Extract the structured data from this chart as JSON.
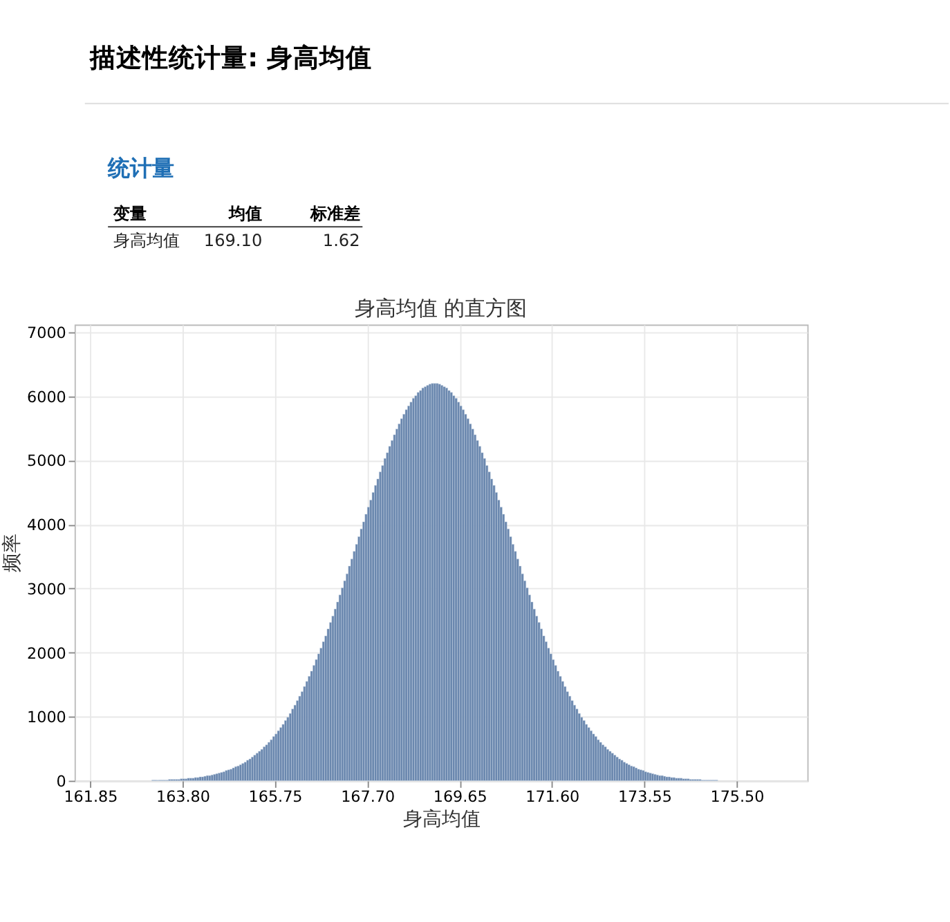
{
  "chart_data": {
    "type": "histogram",
    "title": "身高均值 的直方图",
    "xlabel": "身高均值",
    "ylabel": "频率",
    "annotations": [
      "描述性统计量: 身高均值",
      "统计量",
      "变量",
      "均值",
      "标准差",
      "身高均值",
      "169.10",
      "1.62"
    ],
    "color": "#6a87ae",
    "grid": true,
    "xlim": [
      161.52,
      176.99
    ],
    "ylim": [
      0,
      7120
    ],
    "xticks": [
      161.85,
      {
        "value": 163.8,
        "label": "163.80"
      },
      165.75,
      {
        "value": 167.7,
        "label": "167.70"
      },
      169.65,
      {
        "value": 171.6,
        "label": "171.60"
      },
      173.55,
      {
        "value": 175.5,
        "label": "175.50"
      }
    ],
    "yticks": [
      0,
      1000,
      2000,
      3000,
      4000,
      5000,
      6000,
      7000
    ],
    "bins": [
      163.15,
      163.2,
      163.25,
      163.3,
      163.35,
      163.4,
      163.45,
      163.5,
      163.55,
      163.6,
      163.65,
      163.7,
      163.75,
      163.8,
      163.85,
      163.9,
      163.95,
      164.0,
      164.05,
      164.1,
      164.15,
      164.2,
      164.25,
      164.3,
      164.35,
      164.4,
      164.45,
      164.5,
      164.55,
      164.6,
      164.65,
      164.7,
      164.75,
      164.8,
      164.85,
      164.9,
      164.95,
      165.0,
      165.05,
      165.1,
      165.15,
      165.2,
      165.25,
      165.3,
      165.35,
      165.4,
      165.45,
      165.5,
      165.55,
      165.6,
      165.65,
      165.7,
      165.75,
      165.8,
      165.85,
      165.9,
      165.95,
      166.0,
      166.05,
      166.1,
      166.15,
      166.2,
      166.25,
      166.3,
      166.35,
      166.4,
      166.45,
      166.5,
      166.55,
      166.6,
      166.65,
      166.7,
      166.75,
      166.8,
      166.85,
      166.9,
      166.95,
      167.0,
      167.05,
      167.1,
      167.15,
      167.2,
      167.25,
      167.3,
      167.35,
      167.4,
      167.45,
      167.5,
      167.55,
      167.6,
      167.65,
      167.7,
      167.75,
      167.8,
      167.85,
      167.9,
      167.95,
      168.0,
      168.05,
      168.1,
      168.15,
      168.2,
      168.25,
      168.3,
      168.35,
      168.4,
      168.45,
      168.5,
      168.55,
      168.6,
      168.65,
      168.7,
      168.75,
      168.8,
      168.85,
      168.9,
      168.95,
      169.0,
      169.05,
      169.1,
      169.15,
      169.2,
      169.25,
      169.3,
      169.35,
      169.4,
      169.45,
      169.5,
      169.55,
      169.6,
      169.65,
      169.7,
      169.75,
      169.8,
      169.85,
      169.9,
      169.95,
      170.0,
      170.05,
      170.1,
      170.15,
      170.2,
      170.25,
      170.3,
      170.35,
      170.4,
      170.45,
      170.5,
      170.55,
      170.6,
      170.65,
      170.7,
      170.75,
      170.8,
      170.85,
      170.9,
      170.95,
      171.0,
      171.05,
      171.1,
      171.15,
      171.2,
      171.25,
      171.3,
      171.35,
      171.4,
      171.45,
      171.5,
      171.55,
      171.6,
      171.65,
      171.7,
      171.75,
      171.8,
      171.85,
      171.9,
      171.95,
      172.0,
      172.05,
      172.1,
      172.15,
      172.2,
      172.25,
      172.3,
      172.35,
      172.4,
      172.45,
      172.5,
      172.55,
      172.6,
      172.65,
      172.7,
      172.75,
      172.8,
      172.85,
      172.9,
      172.95,
      173.0,
      173.05,
      173.1,
      173.15,
      173.2,
      173.25,
      173.3,
      173.35,
      173.4,
      173.45,
      173.5,
      173.55,
      173.6,
      173.65,
      173.7,
      173.75,
      173.8,
      173.85,
      173.9,
      173.95,
      174.0,
      174.05,
      174.1,
      174.15,
      174.2,
      174.25,
      174.3,
      174.35,
      174.4,
      174.45,
      174.5,
      174.55,
      174.6,
      174.65,
      174.7,
      174.75,
      174.8,
      174.85,
      174.9,
      174.95,
      175.0,
      175.05,
      175.1
    ],
    "values": [
      10,
      10,
      10,
      10,
      10,
      10,
      10,
      20,
      20,
      20,
      20,
      20,
      30,
      30,
      30,
      40,
      40,
      40,
      50,
      50,
      60,
      60,
      70,
      80,
      80,
      90,
      100,
      110,
      120,
      130,
      140,
      160,
      170,
      180,
      200,
      220,
      230,
      250,
      270,
      290,
      320,
      340,
      370,
      400,
      430,
      460,
      490,
      530,
      560,
      600,
      640,
      690,
      730,
      780,
      830,
      880,
      940,
      990,
      1050,
      1120,
      1180,
      1250,
      1320,
      1390,
      1470,
      1550,
      1630,
      1710,
      1800,
      1890,
      1980,
      2070,
      2170,
      2260,
      2370,
      2470,
      2570,
      2680,
      2790,
      2900,
      3010,
      3120,
      3230,
      3350,
      3460,
      3580,
      3690,
      3810,
      3930,
      4040,
      4160,
      4270,
      4380,
      4500,
      4610,
      4710,
      4820,
      4920,
      5030,
      5120,
      5220,
      5310,
      5400,
      5490,
      5570,
      5650,
      5720,
      5790,
      5850,
      5910,
      5970,
      6010,
      6060,
      6090,
      6130,
      6150,
      6170,
      6190,
      6200,
      6200,
      6200,
      6190,
      6170,
      6150,
      6130,
      6090,
      6060,
      6010,
      5970,
      5910,
      5850,
      5790,
      5720,
      5650,
      5570,
      5490,
      5400,
      5310,
      5220,
      5120,
      5030,
      4920,
      4820,
      4710,
      4610,
      4500,
      4380,
      4270,
      4160,
      4040,
      3930,
      3810,
      3690,
      3580,
      3460,
      3350,
      3230,
      3120,
      3010,
      2900,
      2790,
      2680,
      2570,
      2470,
      2370,
      2260,
      2170,
      2070,
      1980,
      1890,
      1800,
      1710,
      1630,
      1550,
      1470,
      1390,
      1320,
      1250,
      1180,
      1120,
      1050,
      990,
      940,
      880,
      830,
      780,
      730,
      690,
      640,
      600,
      560,
      530,
      490,
      460,
      430,
      400,
      370,
      340,
      320,
      290,
      270,
      250,
      230,
      220,
      200,
      180,
      170,
      160,
      140,
      130,
      120,
      110,
      100,
      90,
      80,
      80,
      70,
      60,
      60,
      50,
      50,
      40,
      40,
      40,
      30,
      30,
      30,
      20,
      20,
      20,
      20,
      20,
      10,
      10,
      10,
      10,
      10,
      10,
      10
    ]
  }
}
